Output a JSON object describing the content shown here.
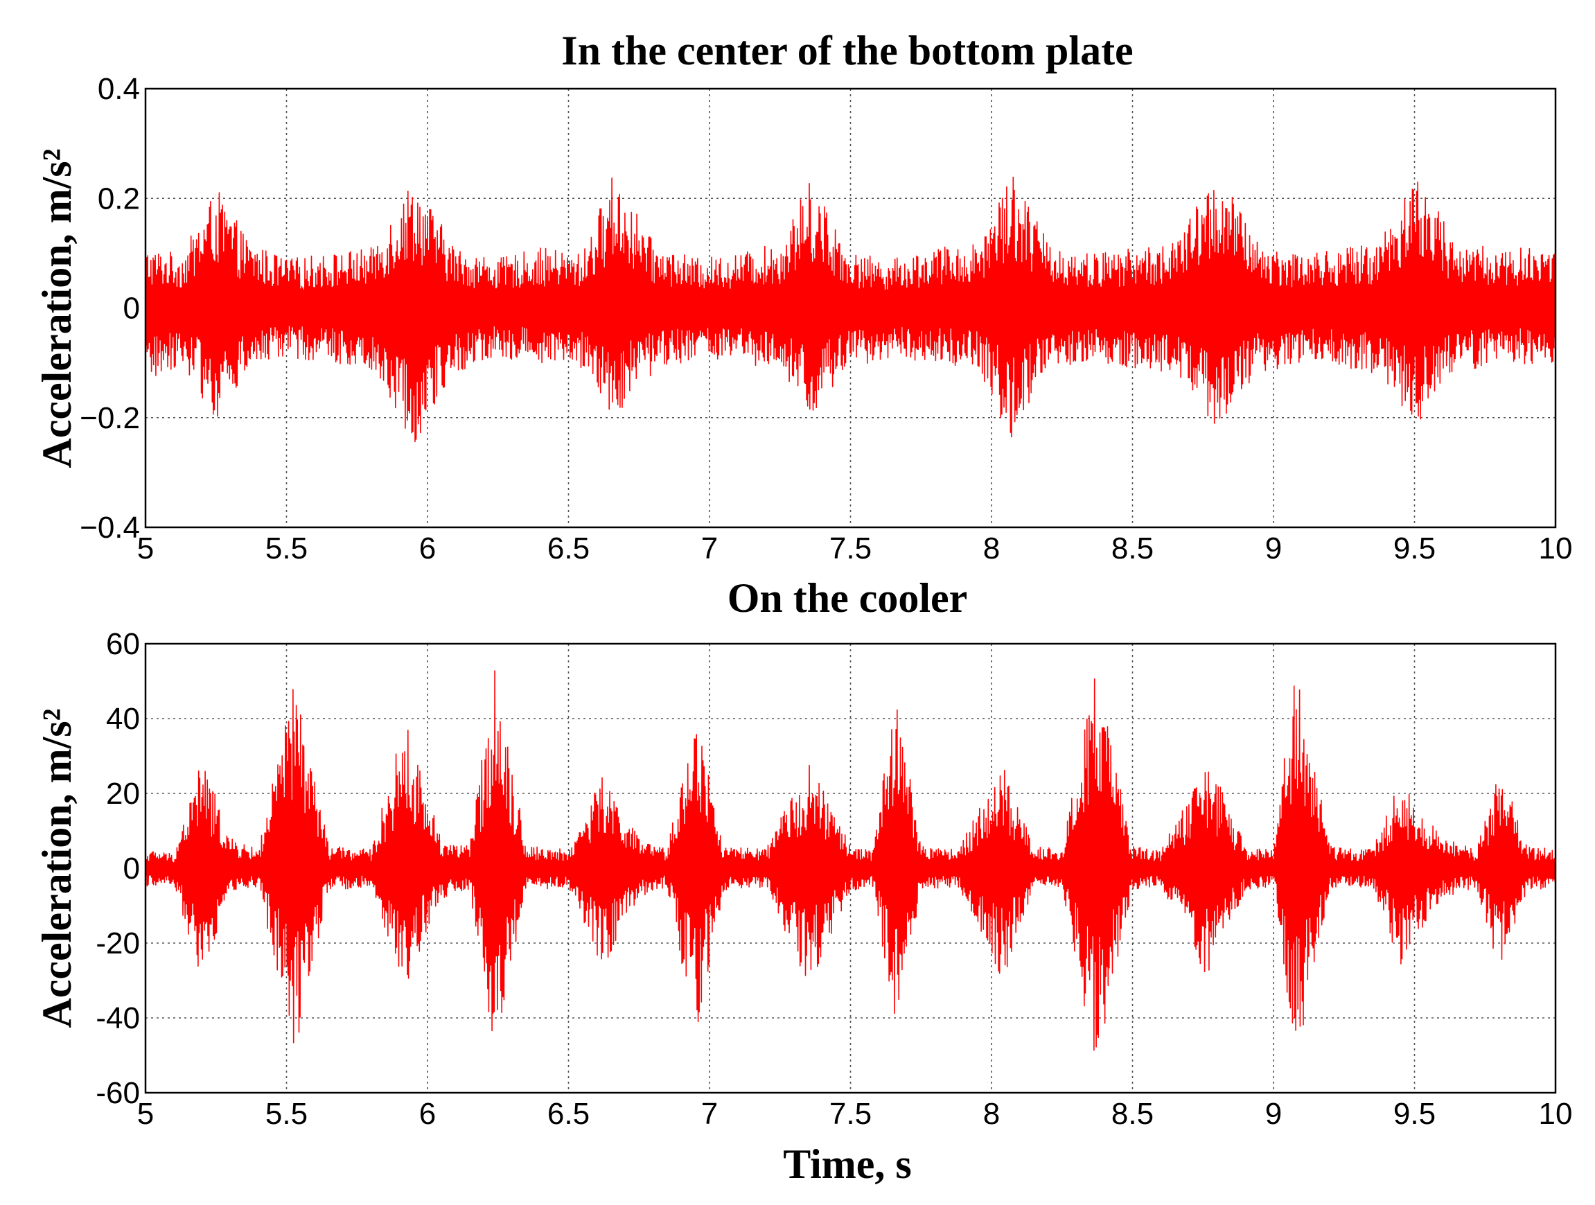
{
  "chart_data": [
    {
      "type": "line",
      "title": "In the center of the bottom plate",
      "xlabel": "",
      "ylabel": "Acceleration, m/s²",
      "xlim": [
        5,
        10
      ],
      "ylim": [
        -0.4,
        0.4
      ],
      "xticks": [
        "5",
        "5.5",
        "6",
        "6.5",
        "7",
        "7.5",
        "8",
        "8.5",
        "9",
        "9.5",
        "10"
      ],
      "yticks": [
        "0.4",
        "0.2",
        "0",
        "−0.2",
        "−0.4"
      ],
      "grid": true,
      "line_color": "#ff0000",
      "series": [
        {
          "x": [
            5.0,
            5.13,
            5.25,
            5.37,
            5.5,
            5.65,
            5.8,
            5.95,
            6.1,
            6.25,
            6.4,
            6.55,
            6.66,
            6.8,
            6.95,
            7.1,
            7.25,
            7.36,
            7.5,
            7.65,
            7.8,
            7.95,
            8.07,
            8.2,
            8.35,
            8.5,
            8.65,
            8.8,
            8.95,
            9.1,
            9.25,
            9.37,
            9.5,
            9.65,
            9.8,
            10.0
          ],
          "upper": [
            0.11,
            0.1,
            0.22,
            0.12,
            0.09,
            0.1,
            0.11,
            0.24,
            0.11,
            0.09,
            0.11,
            0.1,
            0.25,
            0.12,
            0.09,
            0.1,
            0.12,
            0.24,
            0.1,
            0.09,
            0.11,
            0.12,
            0.26,
            0.12,
            0.1,
            0.11,
            0.12,
            0.25,
            0.12,
            0.1,
            0.11,
            0.12,
            0.25,
            0.12,
            0.11,
            0.11
          ],
          "lower": [
            -0.14,
            -0.1,
            -0.21,
            -0.11,
            -0.09,
            -0.1,
            -0.11,
            -0.25,
            -0.12,
            -0.09,
            -0.1,
            -0.11,
            -0.2,
            -0.12,
            -0.09,
            -0.1,
            -0.12,
            -0.2,
            -0.11,
            -0.09,
            -0.1,
            -0.11,
            -0.24,
            -0.12,
            -0.1,
            -0.11,
            -0.12,
            -0.23,
            -0.12,
            -0.1,
            -0.11,
            -0.12,
            -0.22,
            -0.12,
            -0.1,
            -0.11
          ]
        }
      ]
    },
    {
      "type": "line",
      "title": "On the cooler",
      "xlabel": "Time, s",
      "ylabel": "Acceleration, m/s²",
      "xlim": [
        5,
        10
      ],
      "ylim": [
        -60,
        60
      ],
      "xticks": [
        "5",
        "5.5",
        "6",
        "6.5",
        "7",
        "7.5",
        "8",
        "8.5",
        "9",
        "9.5",
        "10"
      ],
      "yticks": [
        "60",
        "40",
        "20",
        "0",
        "-20",
        "-40",
        "-60"
      ],
      "grid": true,
      "line_color": "#ff0000",
      "series": [
        {
          "x": [
            5.0,
            5.1,
            5.2,
            5.3,
            5.4,
            5.53,
            5.65,
            5.8,
            5.92,
            6.05,
            6.15,
            6.24,
            6.35,
            6.5,
            6.62,
            6.75,
            6.85,
            6.95,
            7.05,
            7.2,
            7.35,
            7.5,
            7.58,
            7.66,
            7.75,
            7.88,
            8.04,
            8.15,
            8.25,
            8.37,
            8.5,
            8.6,
            8.77,
            8.9,
            9.0,
            9.08,
            9.2,
            9.35,
            9.45,
            9.6,
            9.72,
            9.8,
            9.9,
            10.0
          ],
          "upper": [
            5,
            4,
            30,
            8,
            5,
            51,
            6,
            5,
            40,
            8,
            6,
            55,
            6,
            5,
            25,
            8,
            5,
            43,
            6,
            5,
            29,
            6,
            5,
            49,
            6,
            5,
            28,
            6,
            5,
            54,
            6,
            5,
            29,
            6,
            5,
            56,
            6,
            5,
            24,
            8,
            5,
            28,
            6,
            5
          ],
          "lower": [
            -5,
            -4,
            -31,
            -6,
            -5,
            -50,
            -6,
            -5,
            -32,
            -8,
            -6,
            -52,
            -6,
            -5,
            -27,
            -8,
            -5,
            -45,
            -6,
            -5,
            -32,
            -6,
            -5,
            -45,
            -6,
            -5,
            -30,
            -6,
            -5,
            -54,
            -6,
            -5,
            -30,
            -6,
            -5,
            -52,
            -6,
            -5,
            -26,
            -8,
            -5,
            -28,
            -6,
            -5
          ]
        }
      ]
    }
  ]
}
